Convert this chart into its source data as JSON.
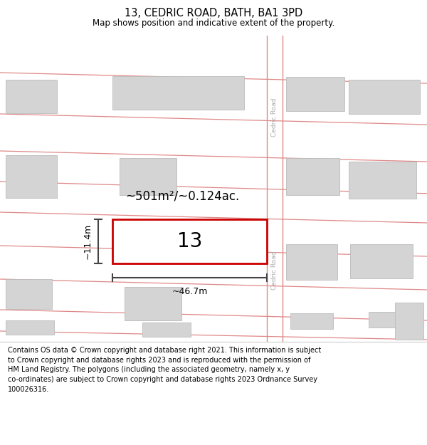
{
  "title": "13, CEDRIC ROAD, BATH, BA1 3PD",
  "subtitle": "Map shows position and indicative extent of the property.",
  "footer_line1": "Contains OS data © Crown copyright and database right 2021. This information is subject",
  "footer_line2": "to Crown copyright and database rights 2023 and is reproduced with the permission of",
  "footer_line3": "HM Land Registry. The polygons (including the associated geometry, namely x, y",
  "footer_line4": "co-ordinates) are subject to Crown copyright and database rights 2023 Ordnance Survey",
  "footer_line5": "100026316.",
  "area_label": "~501m²/~0.124ac.",
  "width_label": "~46.7m",
  "height_label": "~11.4m",
  "lot_number": "13",
  "road_label": "Cedric Road",
  "bg_color": "#ffffff",
  "map_bg": "#f2f2f2",
  "plot_fill": "#ffffff",
  "plot_outline_color": "#cc0000",
  "road_line_color": "#e08888",
  "building_fill": "#d4d4d4",
  "building_edge": "#bbbbbb",
  "road_fill": "#ffffff",
  "measure_color": "#444444",
  "title_fontsize": 10.5,
  "subtitle_fontsize": 8.5,
  "footer_fontsize": 7.0,
  "lot_fontsize": 20,
  "area_fontsize": 12,
  "dim_fontsize": 9
}
